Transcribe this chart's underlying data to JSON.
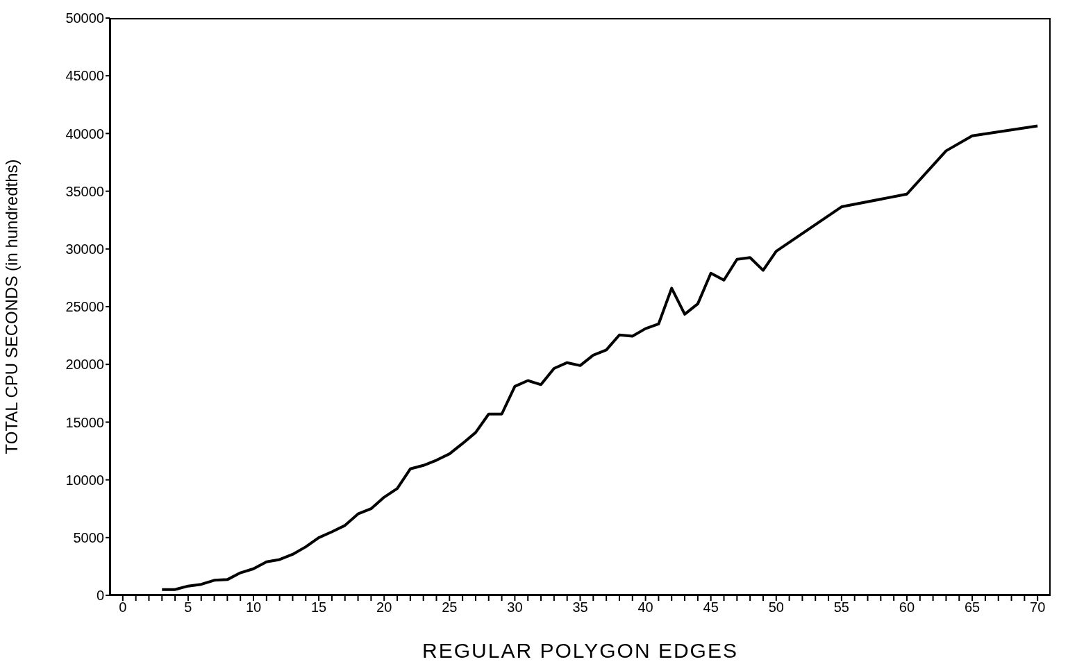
{
  "chart_data": {
    "type": "line",
    "xlabel": "REGULAR POLYGON EDGES",
    "ylabel": "TOTAL CPU SECONDS (in hundredths)",
    "x": [
      3,
      4,
      5,
      6,
      7,
      8,
      9,
      10,
      11,
      12,
      13,
      14,
      15,
      16,
      17,
      18,
      19,
      20,
      21,
      22,
      23,
      24,
      25,
      26,
      27,
      28,
      29,
      30,
      31,
      32,
      33,
      34,
      35,
      36,
      37,
      38,
      39,
      40,
      41,
      42,
      43,
      44,
      45,
      46,
      47,
      48,
      49,
      50,
      55,
      60,
      63,
      65,
      70
    ],
    "series": [
      {
        "color": "#000000",
        "values": [
          500,
          500,
          800,
          950,
          1300,
          1360,
          1950,
          2300,
          2900,
          3100,
          3550,
          4200,
          5000,
          5500,
          6050,
          7050,
          7500,
          8500,
          9250,
          10950,
          11250,
          11700,
          12250,
          13150,
          14100,
          15700,
          15700,
          18100,
          18600,
          18250,
          19650,
          20150,
          19900,
          20800,
          21250,
          22550,
          22450,
          23100,
          23500,
          26600,
          24350,
          25250,
          27900,
          27300,
          29100,
          29250,
          28150,
          29800,
          33650,
          34750,
          38500,
          39800,
          40650
        ]
      }
    ],
    "xlim": [
      -1,
      71
    ],
    "xticks": [
      0,
      {
        "value": 1,
        "label": null
      },
      {
        "value": 2,
        "label": null
      },
      {
        "value": 3,
        "label": null
      },
      {
        "value": 4,
        "label": null
      },
      5,
      {
        "value": 6,
        "label": null
      },
      {
        "value": 7,
        "label": null
      },
      {
        "value": 8,
        "label": null
      },
      {
        "value": 9,
        "label": null
      },
      10,
      {
        "value": 11,
        "label": null
      },
      {
        "value": 12,
        "label": null
      },
      {
        "value": 13,
        "label": null
      },
      {
        "value": 14,
        "label": null
      },
      15,
      {
        "value": 16,
        "label": null
      },
      {
        "value": 17,
        "label": null
      },
      {
        "value": 18,
        "label": null
      },
      {
        "value": 19,
        "label": null
      },
      20,
      {
        "value": 21,
        "label": null
      },
      {
        "value": 22,
        "label": null
      },
      {
        "value": 23,
        "label": null
      },
      {
        "value": 24,
        "label": null
      },
      25,
      {
        "value": 26,
        "label": null
      },
      {
        "value": 27,
        "label": null
      },
      {
        "value": 28,
        "label": null
      },
      {
        "value": 29,
        "label": null
      },
      30,
      {
        "value": 31,
        "label": null
      },
      {
        "value": 32,
        "label": null
      },
      {
        "value": 33,
        "label": null
      },
      {
        "value": 34,
        "label": null
      },
      35,
      {
        "value": 36,
        "label": null
      },
      {
        "value": 37,
        "label": null
      },
      {
        "value": 38,
        "label": null
      },
      {
        "value": 39,
        "label": null
      },
      40,
      {
        "value": 41,
        "label": null
      },
      {
        "value": 42,
        "label": null
      },
      {
        "value": 43,
        "label": null
      },
      {
        "value": 44,
        "label": null
      },
      45,
      {
        "value": 46,
        "label": null
      },
      {
        "value": 47,
        "label": null
      },
      {
        "value": 48,
        "label": null
      },
      {
        "value": 49,
        "label": null
      },
      50,
      {
        "value": 51,
        "label": null
      },
      {
        "value": 52,
        "label": null
      },
      {
        "value": 53,
        "label": null
      },
      {
        "value": 54,
        "label": null
      },
      55,
      {
        "value": 56,
        "label": null
      },
      {
        "value": 57,
        "label": null
      },
      {
        "value": 58,
        "label": null
      },
      {
        "value": 59,
        "label": null
      },
      60,
      {
        "value": 61,
        "label": null
      },
      {
        "value": 62,
        "label": null
      },
      {
        "value": 63,
        "label": null
      },
      {
        "value": 64,
        "label": null
      },
      65,
      {
        "value": 66,
        "label": null
      },
      {
        "value": 67,
        "label": null
      },
      {
        "value": 68,
        "label": null
      },
      {
        "value": 69,
        "label": null
      },
      70
    ],
    "ylim": [
      0,
      50000
    ],
    "yticks": [
      0,
      5000,
      10000,
      15000,
      20000,
      25000,
      30000,
      35000,
      40000,
      45000,
      50000
    ],
    "grid": false,
    "legend": false,
    "marker": "none",
    "line_style": "solid"
  }
}
